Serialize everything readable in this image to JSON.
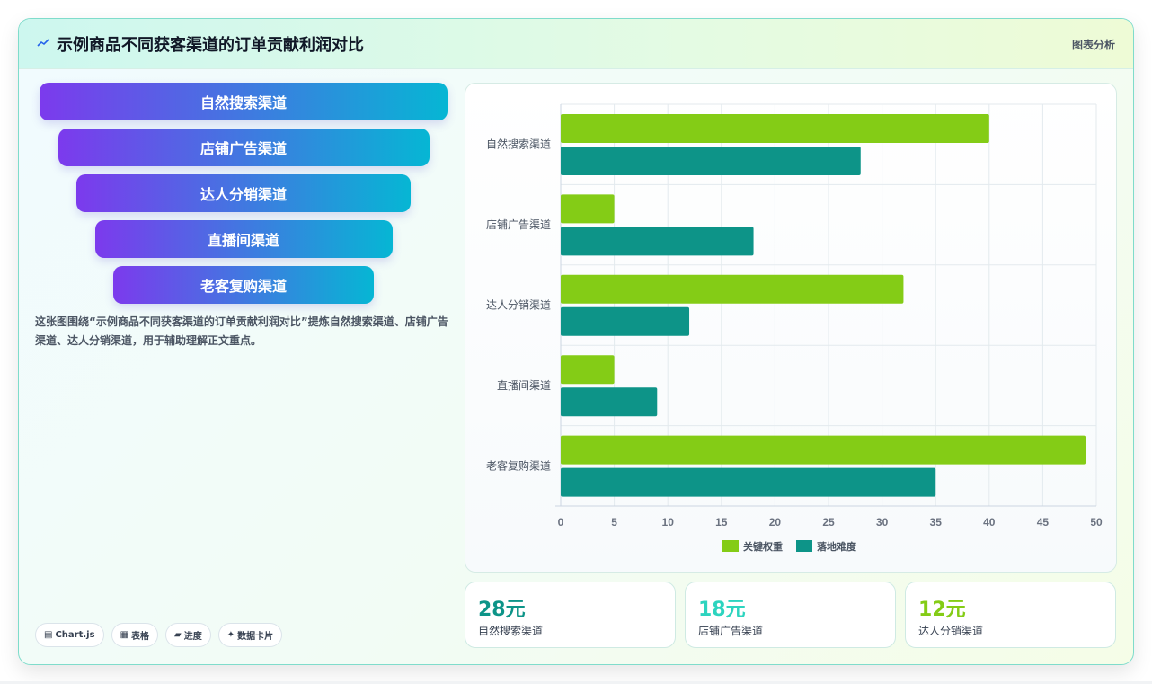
{
  "header": {
    "title": "示例商品不同获客渠道的订单贡献利润对比",
    "link": "图表分析",
    "icon": "trend-icon",
    "accent": "#2563eb"
  },
  "funnel": {
    "items": [
      "自然搜索渠道",
      "店铺广告渠道",
      "达人分销渠道",
      "直播间渠道",
      "老客复购渠道"
    ],
    "gradient": [
      "#7c3aed",
      "#06b6d4"
    ]
  },
  "description": "这张图围绕“示例商品不同获客渠道的订单贡献利润对比”提炼自然搜索渠道、店铺广告渠道、达人分销渠道，用于辅助理解正文重点。",
  "chips": [
    {
      "icon": "▤",
      "label": "Chart.js"
    },
    {
      "icon": "▦",
      "label": "表格"
    },
    {
      "icon": "▰",
      "label": "进度"
    },
    {
      "icon": "✦",
      "label": "数据卡片"
    }
  ],
  "chart_data": {
    "type": "bar",
    "orientation": "horizontal",
    "categories": [
      "自然搜索渠道",
      "店铺广告渠道",
      "达人分销渠道",
      "直播间渠道",
      "老客复购渠道"
    ],
    "series": [
      {
        "name": "关键权重",
        "values": [
          40,
          5,
          32,
          5,
          49
        ],
        "color": "#84cc16"
      },
      {
        "name": "落地难度",
        "values": [
          28,
          18,
          12,
          9,
          35
        ],
        "color": "#0d9488"
      }
    ],
    "xlim": [
      0,
      50
    ],
    "xticks": [
      0,
      5,
      10,
      15,
      20,
      25,
      30,
      35,
      40,
      45,
      50
    ],
    "grid": true,
    "legend": "bottom"
  },
  "stats": [
    {
      "value": "28元",
      "label": "自然搜索渠道",
      "color": "#0d9488"
    },
    {
      "value": "18元",
      "label": "店铺广告渠道",
      "color": "#2dd4bf"
    },
    {
      "value": "12元",
      "label": "达人分销渠道",
      "color": "#84cc16"
    }
  ]
}
